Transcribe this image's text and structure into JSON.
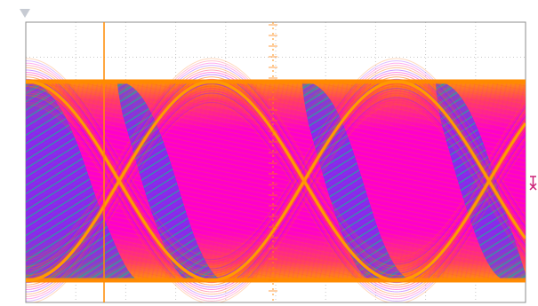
{
  "window": {
    "background": "#ffffff"
  },
  "display": {
    "grid_color": "#c9c9c9",
    "frame_color": "#8c8c8c",
    "eye_colors": {
      "edge": "#ff9900",
      "inner": "#ff00cc",
      "band": "#ff3366",
      "bright": "#ff6600",
      "blue": "#3344ff",
      "teal": "#229999"
    },
    "trigger_marker_color": "#ff7a00",
    "right_marker_color": "#cc2277"
  },
  "icons": {
    "top_left": "small-down-triangle-icon",
    "right_marker": "trigger-arrow-icon"
  }
}
